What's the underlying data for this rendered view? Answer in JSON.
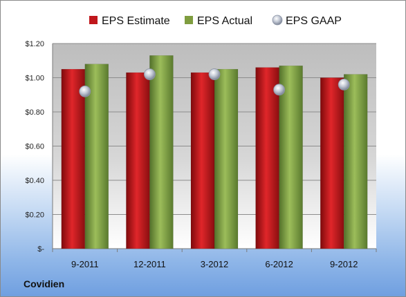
{
  "company": "Covidien",
  "chart_data": {
    "type": "bar",
    "categories": [
      "9-2011",
      "12-2011",
      "3-2012",
      "6-2012",
      "9-2012"
    ],
    "series": [
      {
        "name": "EPS Estimate",
        "values": [
          1.05,
          1.03,
          1.03,
          1.06,
          1.0
        ],
        "color": "#c0171c",
        "kind": "bar"
      },
      {
        "name": "EPS Actual",
        "values": [
          1.08,
          1.13,
          1.05,
          1.07,
          1.02
        ],
        "color": "#7f9d3f",
        "kind": "bar"
      },
      {
        "name": "EPS GAAP",
        "values": [
          0.92,
          1.02,
          1.02,
          0.93,
          0.96
        ],
        "color": "#b9c3d4",
        "kind": "marker"
      }
    ],
    "ylim": [
      0,
      1.2
    ],
    "yticks": [
      0,
      0.2,
      0.4,
      0.6,
      0.8,
      1.0,
      1.2
    ],
    "ytick_labels": [
      "$-",
      "$0.20",
      "$0.40",
      "$0.60",
      "$0.80",
      "$1.00",
      "$1.20"
    ],
    "legend_position": "top",
    "grid": true
  }
}
